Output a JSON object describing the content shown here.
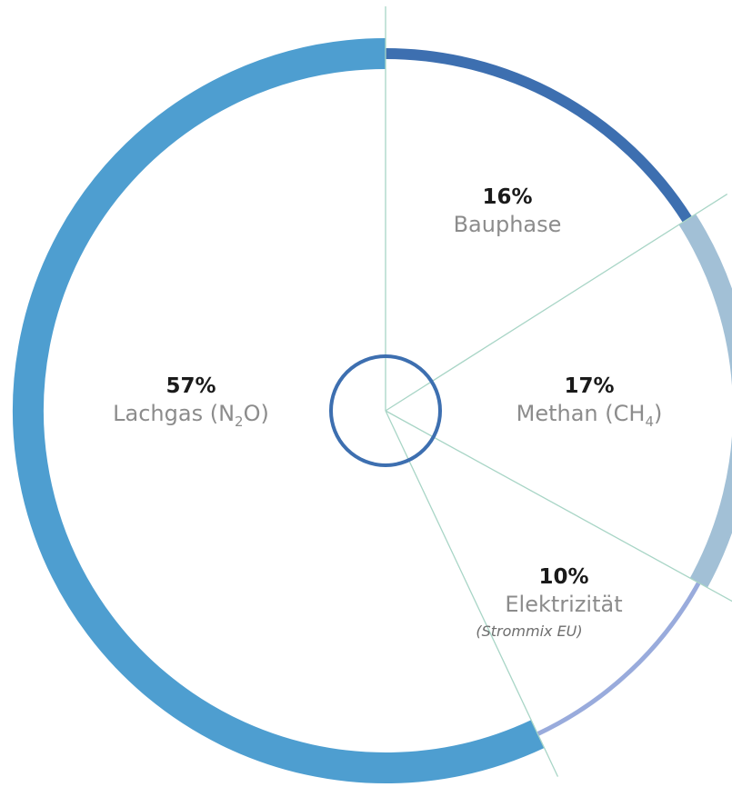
{
  "chart_data": {
    "type": "pie",
    "style": "donut",
    "segments": [
      {
        "value": 16,
        "percent_label": "16%",
        "label": "Bauphase",
        "sublabel": "",
        "color": "#3d6fb0"
      },
      {
        "value": 17,
        "percent_label": "17%",
        "label": "Methan (CH",
        "subscript": "4",
        "label_tail": ")",
        "sublabel": "",
        "color": "#a2c0d6"
      },
      {
        "value": 10,
        "percent_label": "10%",
        "label": "Elektrizität",
        "sublabel": "(Strommix EU)",
        "color": "#99abdc"
      },
      {
        "value": 57,
        "percent_label": "57%",
        "label": "Lachgas (N",
        "subscript": "2",
        "label_tail": "O)",
        "sublabel": "",
        "color": "#4e9ed0"
      }
    ],
    "colors": {
      "divider": "#a8d5c6",
      "center_ring": "#3d6fb0"
    }
  }
}
